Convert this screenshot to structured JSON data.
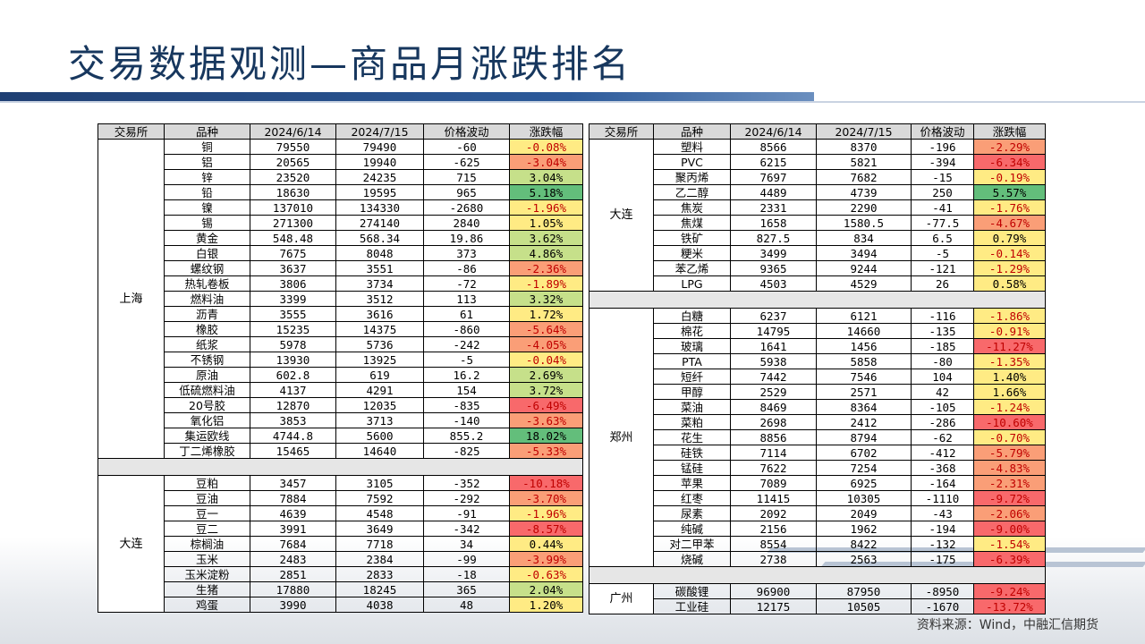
{
  "title": "交易数据观测—商品月涨跌排名",
  "source": "资料来源：Wind，中融汇信期货",
  "headers": [
    "交易所",
    "品种",
    "2024/6/14",
    "2024/7/15",
    "价格波动",
    "涨跌幅"
  ],
  "colors": {
    "strong_red": "#f8696b",
    "mid_red": "#fa9e77",
    "light_yellow": "#ffeb84",
    "light_green": "#c6e08a",
    "green": "#63be7b"
  },
  "left_groups": [
    {
      "exchange": "上海",
      "rows": [
        [
          "铜",
          "79550",
          "79490",
          "-60",
          "-0.08%"
        ],
        [
          "铝",
          "20565",
          "19940",
          "-625",
          "-3.04%"
        ],
        [
          "锌",
          "23520",
          "24235",
          "715",
          "3.04%"
        ],
        [
          "铅",
          "18630",
          "19595",
          "965",
          "5.18%"
        ],
        [
          "镍",
          "137010",
          "134330",
          "-2680",
          "-1.96%"
        ],
        [
          "锡",
          "271300",
          "274140",
          "2840",
          "1.05%"
        ],
        [
          "黄金",
          "548.48",
          "568.34",
          "19.86",
          "3.62%"
        ],
        [
          "白银",
          "7675",
          "8048",
          "373",
          "4.86%"
        ],
        [
          "螺纹钢",
          "3637",
          "3551",
          "-86",
          "-2.36%"
        ],
        [
          "热轧卷板",
          "3806",
          "3734",
          "-72",
          "-1.89%"
        ],
        [
          "燃料油",
          "3399",
          "3512",
          "113",
          "3.32%"
        ],
        [
          "沥青",
          "3555",
          "3616",
          "61",
          "1.72%"
        ],
        [
          "橡胶",
          "15235",
          "14375",
          "-860",
          "-5.64%"
        ],
        [
          "纸浆",
          "5978",
          "5736",
          "-242",
          "-4.05%"
        ],
        [
          "不锈钢",
          "13930",
          "13925",
          "-5",
          "-0.04%"
        ],
        [
          "原油",
          "602.8",
          "619",
          "16.2",
          "2.69%"
        ],
        [
          "低硫燃料油",
          "4137",
          "4291",
          "154",
          "3.72%"
        ],
        [
          "20号胶",
          "12870",
          "12035",
          "-835",
          "-6.49%"
        ],
        [
          "氧化铝",
          "3853",
          "3713",
          "-140",
          "-3.63%"
        ],
        [
          "集运欧线",
          "4744.8",
          "5600",
          "855.2",
          "18.02%"
        ],
        [
          "丁二烯橡胶",
          "15465",
          "14640",
          "-825",
          "-5.33%"
        ]
      ]
    },
    {
      "exchange": "大连",
      "rows": [
        [
          "豆粕",
          "3457",
          "3105",
          "-352",
          "-10.18%"
        ],
        [
          "豆油",
          "7884",
          "7592",
          "-292",
          "-3.70%"
        ],
        [
          "豆一",
          "4639",
          "4548",
          "-91",
          "-1.96%"
        ],
        [
          "豆二",
          "3991",
          "3649",
          "-342",
          "-8.57%"
        ],
        [
          "棕榈油",
          "7684",
          "7718",
          "34",
          "0.44%"
        ],
        [
          "玉米",
          "2483",
          "2384",
          "-99",
          "-3.99%"
        ],
        [
          "玉米淀粉",
          "2851",
          "2833",
          "-18",
          "-0.63%"
        ],
        [
          "生猪",
          "17880",
          "18245",
          "365",
          "2.04%"
        ],
        [
          "鸡蛋",
          "3990",
          "4038",
          "48",
          "1.20%"
        ]
      ]
    }
  ],
  "right_groups": [
    {
      "exchange": "大连",
      "rows": [
        [
          "塑料",
          "8566",
          "8370",
          "-196",
          "-2.29%"
        ],
        [
          "PVC",
          "6215",
          "5821",
          "-394",
          "-6.34%"
        ],
        [
          "聚丙烯",
          "7697",
          "7682",
          "-15",
          "-0.19%"
        ],
        [
          "乙二醇",
          "4489",
          "4739",
          "250",
          "5.57%"
        ],
        [
          "焦炭",
          "2331",
          "2290",
          "-41",
          "-1.76%"
        ],
        [
          "焦煤",
          "1658",
          "1580.5",
          "-77.5",
          "-4.67%"
        ],
        [
          "铁矿",
          "827.5",
          "834",
          "6.5",
          "0.79%"
        ],
        [
          "粳米",
          "3499",
          "3494",
          "-5",
          "-0.14%"
        ],
        [
          "苯乙烯",
          "9365",
          "9244",
          "-121",
          "-1.29%"
        ],
        [
          "LPG",
          "4503",
          "4529",
          "26",
          "0.58%"
        ]
      ]
    },
    {
      "exchange": "郑州",
      "rows": [
        [
          "白糖",
          "6237",
          "6121",
          "-116",
          "-1.86%"
        ],
        [
          "棉花",
          "14795",
          "14660",
          "-135",
          "-0.91%"
        ],
        [
          "玻璃",
          "1641",
          "1456",
          "-185",
          "-11.27%"
        ],
        [
          "PTA",
          "5938",
          "5858",
          "-80",
          "-1.35%"
        ],
        [
          "短纤",
          "7442",
          "7546",
          "104",
          "1.40%"
        ],
        [
          "甲醇",
          "2529",
          "2571",
          "42",
          "1.66%"
        ],
        [
          "菜油",
          "8469",
          "8364",
          "-105",
          "-1.24%"
        ],
        [
          "菜粕",
          "2698",
          "2412",
          "-286",
          "-10.60%"
        ],
        [
          "花生",
          "8856",
          "8794",
          "-62",
          "-0.70%"
        ],
        [
          "硅铁",
          "7114",
          "6702",
          "-412",
          "-5.79%"
        ],
        [
          "锰硅",
          "7622",
          "7254",
          "-368",
          "-4.83%"
        ],
        [
          "苹果",
          "7089",
          "6925",
          "-164",
          "-2.31%"
        ],
        [
          "红枣",
          "11415",
          "10305",
          "-1110",
          "-9.72%"
        ],
        [
          "尿素",
          "2092",
          "2049",
          "-43",
          "-2.06%"
        ],
        [
          "纯碱",
          "2156",
          "1962",
          "-194",
          "-9.00%"
        ],
        [
          "对二甲苯",
          "8554",
          "8422",
          "-132",
          "-1.54%"
        ],
        [
          "烧碱",
          "2738",
          "2563",
          "-175",
          "-6.39%"
        ]
      ]
    },
    {
      "exchange": "广州",
      "rows": [
        [
          "碳酸锂",
          "96900",
          "87950",
          "-8950",
          "-9.24%"
        ],
        [
          "工业硅",
          "12175",
          "10505",
          "-1670",
          "-13.72%"
        ]
      ]
    }
  ]
}
